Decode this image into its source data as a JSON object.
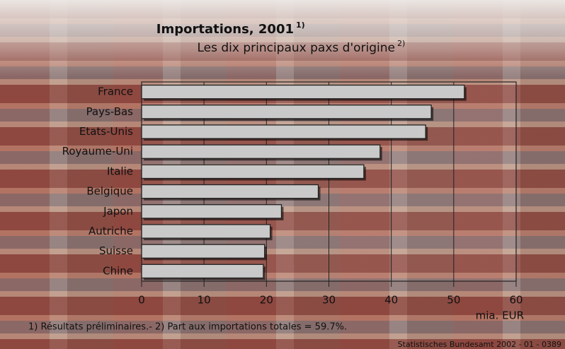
{
  "chart_data": {
    "type": "bar",
    "orientation": "horizontal",
    "title": "Importations, 2001",
    "title_note": "1)",
    "subtitle": "Les dix principaux paxs d'origine",
    "subtitle_note": "2)",
    "categories": [
      "France",
      "Pays-Bas",
      "Etats-Unis",
      "Royaume-Uni",
      "Italie",
      "Belgique",
      "Japon",
      "Autriche",
      "Suisse",
      "Chine"
    ],
    "values": [
      51.7,
      46.4,
      45.5,
      38.2,
      35.6,
      28.3,
      22.4,
      20.6,
      19.7,
      19.5
    ],
    "color": "#c9c9c9",
    "xlim": [
      0,
      60
    ],
    "xticks": [
      0,
      10,
      20,
      30,
      40,
      50,
      60
    ],
    "grid": true,
    "x_label": "mia. EUR",
    "footnote": "1) Résultats préliminaires.- 2) Part aux importations totales = 59.7%.",
    "source": "Statistisches Bundesamt 2002 - 01 - 0389"
  }
}
